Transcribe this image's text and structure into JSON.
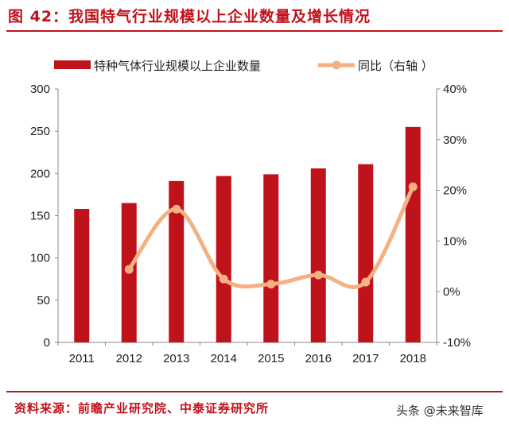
{
  "title": "图 42：我国特气行业规模以上企业数量及增长情况",
  "source": "资料来源：前瞻产业研究院、中泰证券研究所",
  "watermark": "头条 @未来智库",
  "colors": {
    "bar": "#c0121b",
    "line": "#f4b183",
    "accent": "#c0121b"
  },
  "chart_data": {
    "type": "bar+line",
    "title": "图 42：我国特气行业规模以上企业数量及增长情况",
    "categories": [
      "2011",
      "2012",
      "2013",
      "2014",
      "2015",
      "2016",
      "2017",
      "2018"
    ],
    "series": [
      {
        "name": "特种气体行业规模以上企业数量",
        "type": "bar",
        "axis": "left",
        "values": [
          158,
          165,
          191,
          197,
          199,
          206,
          211,
          255
        ]
      },
      {
        "name": "同比（右轴 ）",
        "type": "line",
        "axis": "right",
        "unit": "%",
        "values": [
          null,
          4.4,
          16.3,
          2.5,
          1.5,
          3.3,
          1.9,
          20.7
        ]
      }
    ],
    "left_axis": {
      "ylim": [
        0,
        300
      ],
      "ticks": [
        "0",
        "50",
        "100",
        "150",
        "200",
        "250",
        "300"
      ]
    },
    "right_axis": {
      "ylim": [
        -10,
        40
      ],
      "ticks": [
        "-10%",
        "0%",
        "10%",
        "20%",
        "30%",
        "40%"
      ]
    },
    "xlabel": "",
    "ylabel": "",
    "grid": false,
    "legend_position": "top"
  }
}
